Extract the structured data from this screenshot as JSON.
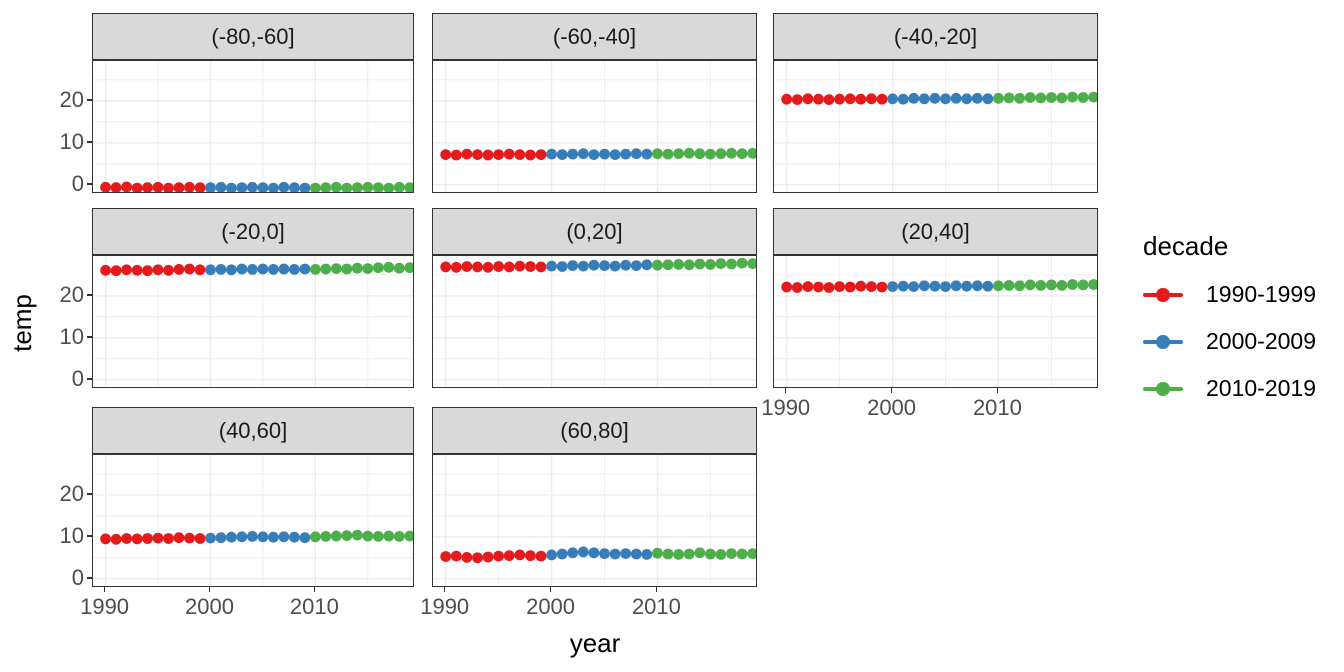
{
  "figure": {
    "xlabel": "year",
    "ylabel": "temp"
  },
  "legend": {
    "title": "decade",
    "entries": [
      {
        "label": "1990-1999",
        "color": "#E41A1C"
      },
      {
        "label": "2000-2009",
        "color": "#377EB8"
      },
      {
        "label": "2010-2019",
        "color": "#4DAF4A"
      }
    ]
  },
  "chart_data": {
    "type": "scatter",
    "title": "",
    "xlabel": "year",
    "ylabel": "temp",
    "legend_position": "right",
    "grid": true,
    "facet_labels": [
      "(-80,-60]",
      "(-60,-40]",
      "(-40,-20]",
      "(-20,0]",
      "(0,20]",
      "(20,40]",
      "(40,60]",
      "(60,80]"
    ],
    "years": [
      1990,
      1991,
      1992,
      1993,
      1994,
      1995,
      1996,
      1997,
      1998,
      1999,
      2000,
      2001,
      2002,
      2003,
      2004,
      2005,
      2006,
      2007,
      2008,
      2009,
      2010,
      2011,
      2012,
      2013,
      2014,
      2015,
      2016,
      2017,
      2018,
      2019
    ],
    "x_ticks": [
      1990,
      2000,
      2010
    ],
    "y_ticks": [
      0,
      10,
      20
    ],
    "x_minor_ticks": [
      1995,
      2005,
      2015
    ],
    "y_minor_ticks": [
      5,
      15,
      25
    ],
    "x_range": [
      1988.8,
      2019.5
    ],
    "y_range": [
      -2.2,
      29.5
    ],
    "decades": [
      {
        "name": "1990-1999",
        "start": 1990,
        "end": 1999,
        "color": "#E41A1C"
      },
      {
        "name": "2000-2009",
        "start": 2000,
        "end": 2009,
        "color": "#377EB8"
      },
      {
        "name": "2010-2019",
        "start": 2010,
        "end": 2019,
        "color": "#4DAF4A"
      }
    ],
    "facets": [
      {
        "label": "(-80,-60]",
        "values": [
          -0.6,
          -0.7,
          -0.5,
          -0.8,
          -0.7,
          -0.6,
          -0.8,
          -0.7,
          -0.6,
          -0.7,
          -0.7,
          -0.6,
          -0.8,
          -0.7,
          -0.6,
          -0.7,
          -0.8,
          -0.6,
          -0.7,
          -0.8,
          -0.8,
          -0.7,
          -0.6,
          -0.8,
          -0.7,
          -0.6,
          -0.7,
          -0.8,
          -0.6,
          -0.7
        ]
      },
      {
        "label": "(-60,-40]",
        "values": [
          7.2,
          7.1,
          7.3,
          7.2,
          7.1,
          7.2,
          7.3,
          7.2,
          7.1,
          7.2,
          7.3,
          7.2,
          7.3,
          7.4,
          7.2,
          7.3,
          7.2,
          7.3,
          7.4,
          7.3,
          7.4,
          7.3,
          7.4,
          7.5,
          7.4,
          7.3,
          7.4,
          7.5,
          7.4,
          7.5
        ]
      },
      {
        "label": "(-40,-20]",
        "values": [
          20.4,
          20.3,
          20.5,
          20.4,
          20.3,
          20.4,
          20.5,
          20.4,
          20.5,
          20.4,
          20.5,
          20.4,
          20.6,
          20.5,
          20.6,
          20.5,
          20.6,
          20.5,
          20.6,
          20.5,
          20.6,
          20.7,
          20.6,
          20.8,
          20.7,
          20.8,
          20.7,
          20.9,
          20.8,
          20.9
        ]
      },
      {
        "label": "(-20,0]",
        "values": [
          26.1,
          26.0,
          26.2,
          26.1,
          26.0,
          26.2,
          26.1,
          26.3,
          26.4,
          26.2,
          26.2,
          26.3,
          26.2,
          26.4,
          26.3,
          26.4,
          26.3,
          26.4,
          26.3,
          26.4,
          26.3,
          26.4,
          26.5,
          26.4,
          26.6,
          26.5,
          26.7,
          26.8,
          26.6,
          26.7
        ]
      },
      {
        "label": "(0,20]",
        "values": [
          26.9,
          26.8,
          27.0,
          26.9,
          26.8,
          27.0,
          26.9,
          27.1,
          27.0,
          26.9,
          27.1,
          27.0,
          27.2,
          27.1,
          27.3,
          27.2,
          27.1,
          27.3,
          27.2,
          27.4,
          27.3,
          27.4,
          27.5,
          27.4,
          27.6,
          27.5,
          27.7,
          27.6,
          27.8,
          27.7
        ]
      },
      {
        "label": "(20,40]",
        "values": [
          22.1,
          22.0,
          22.2,
          22.1,
          22.0,
          22.2,
          22.1,
          22.3,
          22.2,
          22.1,
          22.2,
          22.3,
          22.2,
          22.4,
          22.3,
          22.2,
          22.4,
          22.3,
          22.4,
          22.3,
          22.4,
          22.5,
          22.4,
          22.6,
          22.5,
          22.6,
          22.5,
          22.7,
          22.6,
          22.7
        ]
      },
      {
        "label": "(40,60]",
        "values": [
          9.5,
          9.4,
          9.6,
          9.5,
          9.6,
          9.7,
          9.6,
          9.8,
          9.7,
          9.6,
          9.7,
          9.8,
          9.9,
          10.0,
          10.1,
          10.0,
          9.9,
          10.0,
          9.9,
          9.8,
          10.0,
          10.1,
          10.2,
          10.3,
          10.4,
          10.2,
          10.1,
          10.2,
          10.1,
          10.2
        ]
      },
      {
        "label": "(60,80]",
        "values": [
          5.3,
          5.4,
          5.1,
          5.0,
          5.2,
          5.4,
          5.5,
          5.7,
          5.5,
          5.4,
          5.7,
          5.9,
          6.2,
          6.4,
          6.2,
          6.0,
          5.9,
          6.0,
          5.9,
          5.8,
          6.1,
          5.9,
          5.8,
          5.9,
          6.2,
          5.9,
          5.8,
          6.0,
          5.9,
          6.0
        ]
      }
    ],
    "colors": {
      "strip_bg": "#D9D9D9",
      "panel_border": "#333333",
      "grid": "#EBEBEB",
      "tick_text": "#4D4D4D"
    }
  }
}
